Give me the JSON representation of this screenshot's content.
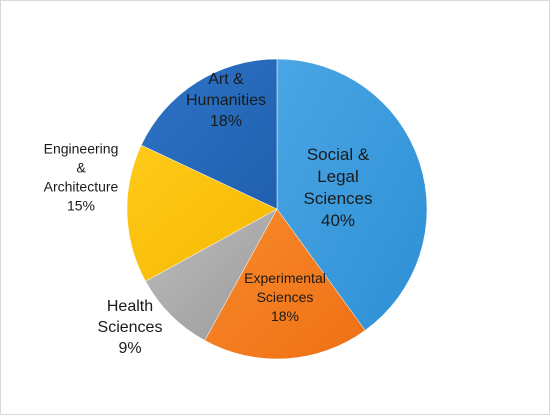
{
  "chart_data": {
    "type": "pie",
    "title": "",
    "start_angle_deg": 90,
    "direction": "clockwise",
    "legend": "none",
    "slices": [
      {
        "name": "Social & Legal Sciences",
        "label_lines": [
          "Social &",
          "Legal",
          "Sciences"
        ],
        "percent_label": "40%",
        "value": 40,
        "color": "#2d8fd5",
        "color_light": "#4aa6e4",
        "label_color": "#1a1a1a"
      },
      {
        "name": "Experimental Sciences",
        "label_lines": [
          "Experimental",
          "Sciences"
        ],
        "percent_label": "18%",
        "value": 18,
        "color": "#ef7014",
        "color_light": "#f88a2c",
        "label_color": "#1a1a1a"
      },
      {
        "name": "Health Sciences",
        "label_lines": [
          "Health",
          "Sciences"
        ],
        "percent_label": "9%",
        "value": 9,
        "color": "#9a9a9a",
        "color_light": "#bdbdbd",
        "label_color": "#1a1a1a"
      },
      {
        "name": "Engineering & Architecture",
        "label_lines": [
          "Engineering",
          "&",
          "Architecture"
        ],
        "percent_label": "15%",
        "value": 15,
        "color": "#f5b800",
        "color_light": "#ffca1a",
        "label_color": "#1a1a1a"
      },
      {
        "name": "Art & Humanities",
        "label_lines": [
          "Art &",
          "Humanities"
        ],
        "percent_label": "18%",
        "value": 18,
        "color": "#1f5fae",
        "color_light": "#2f74c6",
        "label_color": "#1a1a1a"
      }
    ]
  }
}
